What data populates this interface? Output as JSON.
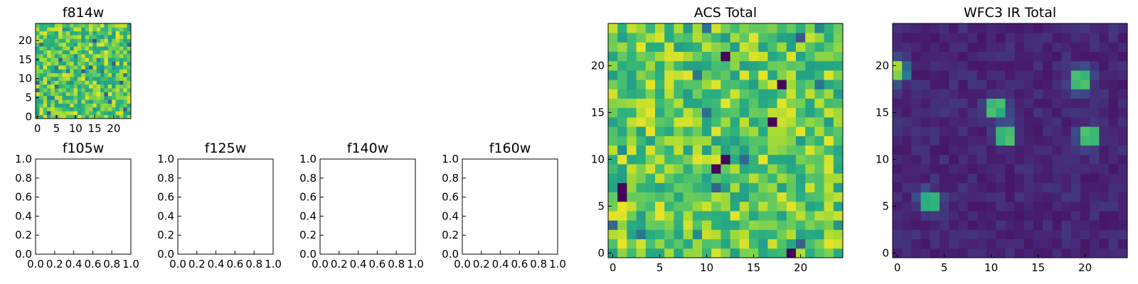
{
  "chart_data": [
    {
      "type": "heatmap",
      "title": "f814w",
      "x_ticks": [
        "0",
        "5",
        "10",
        "15",
        "20"
      ],
      "y_ticks": [
        "0",
        "5",
        "10",
        "15",
        "20"
      ],
      "xlim": [
        -0.5,
        24.5
      ],
      "ylim": [
        -0.5,
        24.5
      ],
      "grid_size": 25,
      "colormap": "viridis",
      "pattern": "acs",
      "seed": 814
    },
    {
      "type": "heatmap",
      "title": "f105w",
      "x_ticks": [
        "0.0",
        "0.2",
        "0.4",
        "0.6",
        "0.8",
        "1.0"
      ],
      "y_ticks": [
        "0.0",
        "0.2",
        "0.4",
        "0.6",
        "0.8",
        "1.0"
      ],
      "xlim": [
        0,
        1
      ],
      "ylim": [
        0,
        1
      ],
      "empty": true
    },
    {
      "type": "heatmap",
      "title": "f125w",
      "x_ticks": [
        "0.0",
        "0.2",
        "0.4",
        "0.6",
        "0.8",
        "1.0"
      ],
      "y_ticks": [
        "0.0",
        "0.2",
        "0.4",
        "0.6",
        "0.8",
        "1.0"
      ],
      "xlim": [
        0,
        1
      ],
      "ylim": [
        0,
        1
      ],
      "empty": true
    },
    {
      "type": "heatmap",
      "title": "f140w",
      "x_ticks": [
        "0.0",
        "0.2",
        "0.4",
        "0.6",
        "0.8",
        "1.0"
      ],
      "y_ticks": [
        "0.0",
        "0.2",
        "0.4",
        "0.6",
        "0.8",
        "1.0"
      ],
      "xlim": [
        0,
        1
      ],
      "ylim": [
        0,
        1
      ],
      "empty": true
    },
    {
      "type": "heatmap",
      "title": "f160w",
      "x_ticks": [
        "0.0",
        "0.2",
        "0.4",
        "0.6",
        "0.8",
        "1.0"
      ],
      "y_ticks": [
        "0.0",
        "0.2",
        "0.4",
        "0.6",
        "0.8",
        "1.0"
      ],
      "xlim": [
        0,
        1
      ],
      "ylim": [
        0,
        1
      ],
      "empty": true
    },
    {
      "type": "heatmap",
      "title": "ACS Total",
      "x_ticks": [
        "0",
        "5",
        "10",
        "15",
        "20"
      ],
      "y_ticks": [
        "0",
        "5",
        "10",
        "15",
        "20"
      ],
      "xlim": [
        -0.5,
        24.5
      ],
      "ylim": [
        -0.5,
        24.5
      ],
      "grid_size": 25,
      "colormap": "viridis",
      "pattern": "acs",
      "seed": 2024,
      "dark_cells": [
        [
          12,
          21
        ],
        [
          18,
          18
        ],
        [
          17,
          14
        ],
        [
          12,
          10
        ],
        [
          11,
          9
        ],
        [
          1,
          7
        ],
        [
          1,
          6
        ],
        [
          19,
          0
        ]
      ]
    },
    {
      "type": "heatmap",
      "title": "WFC3 IR Total",
      "x_ticks": [
        "0",
        "5",
        "10",
        "15",
        "20"
      ],
      "y_ticks": [
        "0",
        "5",
        "10",
        "15",
        "20"
      ],
      "xlim": [
        -0.5,
        24.5
      ],
      "ylim": [
        -0.5,
        24.5
      ],
      "grid_size": 25,
      "colormap": "viridis",
      "pattern": "ir",
      "seed": 160,
      "sources": [
        [
          19.5,
          18.5
        ],
        [
          10.5,
          15.5
        ],
        [
          11.5,
          12.5
        ],
        [
          20.5,
          12.5
        ],
        [
          3.5,
          5.5
        ],
        [
          0,
          19.5
        ]
      ]
    }
  ]
}
